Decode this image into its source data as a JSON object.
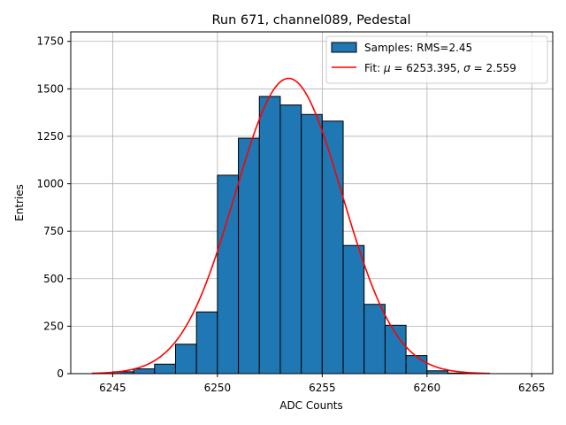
{
  "chart_data": {
    "type": "bar",
    "title": "Run 671, channel089, Pedestal",
    "xlabel": "ADC Counts",
    "ylabel": "Entries",
    "xlim": [
      6243.0,
      6266.0
    ],
    "ylim": [
      0,
      1800
    ],
    "xticks": [
      6245,
      6250,
      6255,
      6260,
      6265
    ],
    "yticks": [
      0,
      250,
      500,
      750,
      1000,
      1250,
      1500,
      1750
    ],
    "grid": true,
    "legend_position": "top-right",
    "histogram": {
      "name": "Samples: RMS=2.45",
      "color": "#1f77b4",
      "bins": [
        {
          "x0": 6245,
          "x1": 6246,
          "count": 10
        },
        {
          "x0": 6246,
          "x1": 6247,
          "count": 25
        },
        {
          "x0": 6247,
          "x1": 6248,
          "count": 50
        },
        {
          "x0": 6248,
          "x1": 6249,
          "count": 155
        },
        {
          "x0": 6249,
          "x1": 6250,
          "count": 325
        },
        {
          "x0": 6250,
          "x1": 6251,
          "count": 1045
        },
        {
          "x0": 6251,
          "x1": 6252,
          "count": 1240
        },
        {
          "x0": 6252,
          "x1": 6253,
          "count": 1460
        },
        {
          "x0": 6253,
          "x1": 6254,
          "count": 1415
        },
        {
          "x0": 6254,
          "x1": 6255,
          "count": 1365
        },
        {
          "x0": 6255,
          "x1": 6256,
          "count": 1330
        },
        {
          "x0": 6256,
          "x1": 6257,
          "count": 675
        },
        {
          "x0": 6257,
          "x1": 6258,
          "count": 365
        },
        {
          "x0": 6258,
          "x1": 6259,
          "count": 255
        },
        {
          "x0": 6259,
          "x1": 6260,
          "count": 95
        },
        {
          "x0": 6260,
          "x1": 6261,
          "count": 15
        },
        {
          "x0": 6261,
          "x1": 6262,
          "count": 3
        }
      ]
    },
    "fit": {
      "name": "Fit: μ = 6253.395, σ = 2.559",
      "name_plain": "Fit: ",
      "mu_symbol": "μ",
      "mu_text": " = 6253.395, ",
      "sigma_symbol": "σ",
      "sigma_text": " = 2.559",
      "color": "#ff0000",
      "mu": 6253.395,
      "sigma": 2.559,
      "amplitude": 1555,
      "x_range": [
        6244,
        6263
      ]
    }
  }
}
